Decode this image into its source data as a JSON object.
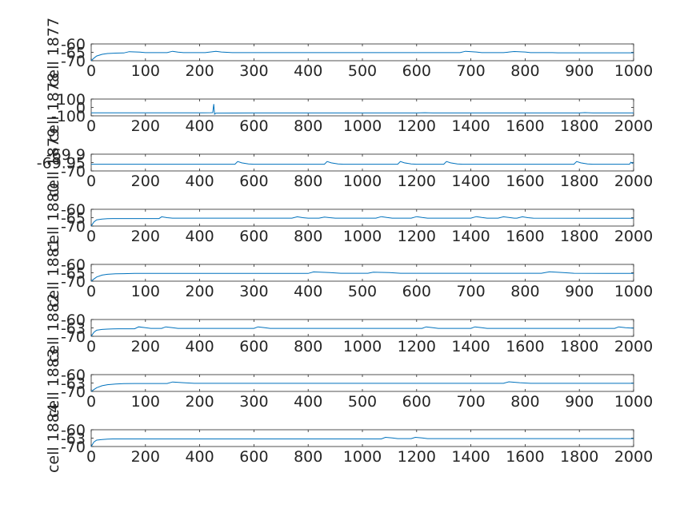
{
  "chart_data": [
    {
      "type": "line",
      "ylabel": "cell 1877",
      "xlim": [
        0,
        1000
      ],
      "ylim": [
        -70,
        -60
      ],
      "xticks": [
        "0",
        "100",
        "200",
        "300",
        "400",
        "500",
        "600",
        "700",
        "800",
        "900",
        "1000"
      ],
      "yticks": [
        "-60",
        "-65",
        "-70"
      ],
      "series": [
        {
          "color": "#0072BD",
          "rest": -65,
          "x": [
            0,
            5,
            10,
            20,
            30,
            45,
            60,
            70,
            90,
            100,
            140,
            150,
            160,
            170,
            210,
            230,
            240,
            260,
            680,
            690,
            710,
            720,
            760,
            780,
            800,
            810,
            850,
            860,
            1000
          ],
          "y": [
            -70,
            -68.5,
            -67.2,
            -66.2,
            -65.7,
            -65.5,
            -65.4,
            -64.6,
            -64.9,
            -65.2,
            -65.2,
            -64.4,
            -64.9,
            -65.2,
            -65.2,
            -64.4,
            -64.8,
            -65.2,
            -65.2,
            -64.4,
            -64.8,
            -65.2,
            -65.2,
            -64.5,
            -64.8,
            -65.2,
            -65.2,
            -65.3,
            -65.3
          ]
        }
      ]
    },
    {
      "type": "line",
      "ylabel": "cell 1878",
      "xlim": [
        0,
        2000
      ],
      "ylim": [
        -100,
        100
      ],
      "xticks": [
        "0",
        "200",
        "400",
        "600",
        "800",
        "1000",
        "1200",
        "1400",
        "1600",
        "1800",
        "2000"
      ],
      "yticks": [
        "100",
        "0",
        "-100"
      ],
      "series": [
        {
          "color": "#0072BD",
          "x": [
            0,
            400,
            440,
            448,
            452,
            455,
            460,
            600,
            1200,
            1230,
            1260,
            1800,
            1820,
            1850,
            2000
          ],
          "y": [
            -65,
            -65,
            -63,
            -62,
            40,
            -80,
            -68,
            -66,
            -66,
            -63,
            -66,
            -66,
            -62,
            -66,
            -66
          ]
        }
      ]
    },
    {
      "type": "line",
      "ylabel": "cell 1879",
      "xlim": [
        0,
        2000
      ],
      "ylim": [
        -70,
        -69.9
      ],
      "xticks": [
        "0",
        "200",
        "400",
        "600",
        "800",
        "1000",
        "1200",
        "1400",
        "1600",
        "1800",
        "2000"
      ],
      "yticks": [
        "-69.9",
        "-69.95",
        "-70"
      ],
      "series": [
        {
          "color": "#0072BD",
          "x": [
            0,
            530,
            540,
            555,
            580,
            600,
            860,
            870,
            885,
            910,
            930,
            1130,
            1140,
            1155,
            1180,
            1200,
            1300,
            1310,
            1325,
            1350,
            1370,
            1780,
            1790,
            1805,
            1830,
            1850,
            1985,
            1990,
            1995,
            2000
          ],
          "y": [
            -69.96,
            -69.96,
            -69.944,
            -69.952,
            -69.958,
            -69.96,
            -69.96,
            -69.944,
            -69.952,
            -69.958,
            -69.96,
            -69.96,
            -69.944,
            -69.952,
            -69.958,
            -69.96,
            -69.96,
            -69.944,
            -69.952,
            -69.958,
            -69.96,
            -69.96,
            -69.944,
            -69.952,
            -69.958,
            -69.96,
            -69.96,
            -69.948,
            -69.955,
            -69.95
          ]
        }
      ]
    },
    {
      "type": "line",
      "ylabel": "cell 1880",
      "xlim": [
        0,
        2000
      ],
      "ylim": [
        -70,
        -60
      ],
      "xticks": [
        "0",
        "200",
        "400",
        "600",
        "800",
        "1000",
        "1200",
        "1400",
        "1600",
        "1800",
        "2000"
      ],
      "yticks": [
        "-60",
        "-65",
        "-70"
      ],
      "series": [
        {
          "color": "#0072BD",
          "x": [
            0,
            10,
            20,
            40,
            60,
            80,
            100,
            200,
            250,
            260,
            280,
            300,
            740,
            760,
            780,
            800,
            840,
            860,
            880,
            900,
            1050,
            1070,
            1090,
            1110,
            1180,
            1200,
            1220,
            1240,
            1400,
            1420,
            1440,
            1460,
            1500,
            1520,
            1540,
            1560,
            1570,
            1590,
            1610,
            1630,
            2000
          ],
          "y": [
            -70,
            -67.5,
            -66.3,
            -65.8,
            -65.6,
            -65.5,
            -65.5,
            -65.5,
            -65.5,
            -64.5,
            -65,
            -65.3,
            -65.3,
            -64.5,
            -65,
            -65.3,
            -65.3,
            -64.6,
            -65,
            -65.3,
            -65.3,
            -64.4,
            -64.9,
            -65.3,
            -65.3,
            -64.4,
            -64.9,
            -65.3,
            -65.3,
            -64.4,
            -64.9,
            -65.3,
            -65.3,
            -64.5,
            -64.9,
            -65.3,
            -65.3,
            -64.5,
            -65,
            -65.3,
            -65.4
          ]
        }
      ]
    },
    {
      "type": "line",
      "ylabel": "cell 1881",
      "xlim": [
        0,
        1000
      ],
      "ylim": [
        -70,
        -60
      ],
      "xticks": [
        "0",
        "100",
        "200",
        "300",
        "400",
        "500",
        "600",
        "700",
        "800",
        "900",
        "1000"
      ],
      "yticks": [
        "-60",
        "-65",
        "-70"
      ],
      "series": [
        {
          "color": "#0072BD",
          "x": [
            0,
            5,
            10,
            20,
            30,
            45,
            60,
            80,
            100,
            400,
            410,
            440,
            460,
            510,
            520,
            550,
            570,
            830,
            845,
            870,
            890,
            1000
          ],
          "y": [
            -70,
            -68.7,
            -67.5,
            -66.4,
            -65.9,
            -65.6,
            -65.5,
            -65.4,
            -65.4,
            -65.4,
            -64.5,
            -64.9,
            -65.3,
            -65.3,
            -64.6,
            -64.9,
            -65.3,
            -65.3,
            -64.4,
            -64.9,
            -65.3,
            -65.4
          ]
        }
      ]
    },
    {
      "type": "line",
      "ylabel": "cell 1882",
      "xlim": [
        0,
        2000
      ],
      "ylim": [
        -70,
        -60
      ],
      "xticks": [
        "0",
        "200",
        "400",
        "600",
        "800",
        "1000",
        "1200",
        "1400",
        "1600",
        "1800",
        "2000"
      ],
      "yticks": [
        "-60",
        "-63",
        "-70"
      ],
      "series": [
        {
          "color": "#0072BD",
          "x": [
            0,
            10,
            20,
            40,
            60,
            80,
            100,
            160,
            175,
            200,
            220,
            260,
            275,
            300,
            320,
            600,
            615,
            640,
            660,
            1220,
            1235,
            1260,
            1280,
            1400,
            1415,
            1440,
            1460,
            1930,
            1945,
            1970,
            2000
          ],
          "y": [
            -70,
            -67.6,
            -66.4,
            -65.9,
            -65.7,
            -65.6,
            -65.5,
            -65.5,
            -64.4,
            -64.9,
            -65.3,
            -65.3,
            -64.4,
            -64.9,
            -65.3,
            -65.3,
            -64.4,
            -64.9,
            -65.3,
            -65.3,
            -64.4,
            -64.9,
            -65.3,
            -65.3,
            -64.4,
            -64.9,
            -65.3,
            -65.3,
            -64.4,
            -64.9,
            -65.2
          ]
        }
      ]
    },
    {
      "type": "line",
      "ylabel": "cell 1883",
      "xlim": [
        0,
        1000
      ],
      "ylim": [
        -70,
        -60
      ],
      "xticks": [
        "0",
        "100",
        "200",
        "300",
        "400",
        "500",
        "600",
        "700",
        "800",
        "900",
        "1000"
      ],
      "yticks": [
        "-60",
        "-63",
        "-70"
      ],
      "series": [
        {
          "color": "#0072BD",
          "x": [
            0,
            5,
            10,
            20,
            30,
            45,
            60,
            80,
            100,
            140,
            150,
            170,
            190,
            760,
            770,
            790,
            810,
            1000
          ],
          "y": [
            -70,
            -68.9,
            -67.8,
            -66.6,
            -66,
            -65.6,
            -65.4,
            -65.3,
            -65.3,
            -65.3,
            -64.4,
            -64.8,
            -65.2,
            -65.2,
            -64.3,
            -64.8,
            -65.2,
            -65.2
          ]
        }
      ]
    },
    {
      "type": "line",
      "ylabel": "cell 1884",
      "xlim": [
        0,
        2000
      ],
      "ylim": [
        -70,
        -60
      ],
      "xticks": [
        "0",
        "200",
        "400",
        "600",
        "800",
        "1000",
        "1200",
        "1400",
        "1600",
        "1800",
        "2000"
      ],
      "yticks": [
        "-60",
        "-63",
        "-70"
      ],
      "series": [
        {
          "color": "#0072BD",
          "x": [
            0,
            10,
            20,
            40,
            60,
            80,
            100,
            200,
            1070,
            1085,
            1110,
            1130,
            1180,
            1195,
            1220,
            1240,
            2000
          ],
          "y": [
            -70,
            -67.3,
            -66.2,
            -65.8,
            -65.6,
            -65.5,
            -65.5,
            -65.5,
            -65.5,
            -64.5,
            -64.9,
            -65.3,
            -65.3,
            -64.5,
            -64.9,
            -65.3,
            -65.3
          ]
        }
      ]
    }
  ]
}
